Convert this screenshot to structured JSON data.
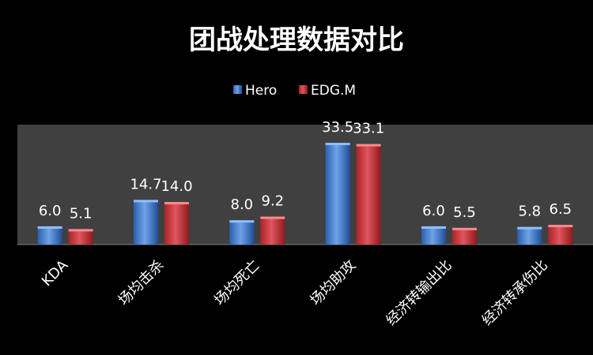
{
  "chart_data": {
    "type": "bar",
    "title": "团战处理数据对比",
    "categories": [
      "KDA",
      "场均击杀",
      "场均死亡",
      "场均助攻",
      "经济转输出比",
      "经济转承伤比"
    ],
    "series": [
      {
        "name": "Hero",
        "values": [
          6.0,
          14.7,
          8.0,
          33.5,
          6.0,
          5.8
        ]
      },
      {
        "name": "EDG.M",
        "values": [
          5.1,
          14.0,
          9.2,
          33.1,
          5.5,
          6.5
        ]
      }
    ],
    "data_labels": [
      [
        "6.0",
        "14.7",
        "8.0",
        "33.5",
        "6.0",
        "5.8"
      ],
      [
        "5.1",
        "14.0",
        "9.2",
        "33.1",
        "5.5",
        "6.5"
      ]
    ],
    "ylim": [
      0,
      40
    ],
    "grid": false,
    "legend_position": "top",
    "plot_background": "#404040",
    "colors": {
      "hero_light": "#6fa3e6",
      "hero_dark": "#1f4e9a",
      "edg_light": "#e0565c",
      "edg_dark": "#8e1a1e",
      "text": "#ffffff"
    }
  }
}
